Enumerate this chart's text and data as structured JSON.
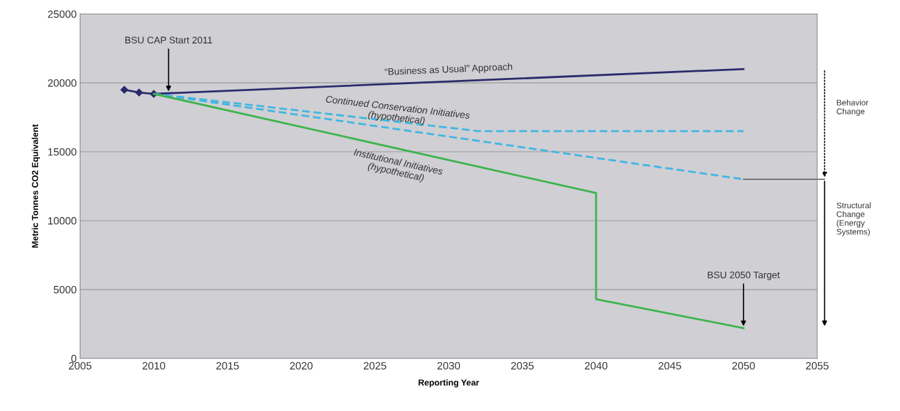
{
  "chart_data": {
    "type": "line",
    "xlabel": "Reporting Year",
    "ylabel": "Metric Tonnes CO2 Equivalent",
    "xlim": [
      2005,
      2055
    ],
    "xticks": [
      2005,
      2010,
      2015,
      2020,
      2025,
      2030,
      2035,
      2040,
      2045,
      2050,
      2055
    ],
    "ylim": [
      0,
      25000
    ],
    "yticks": [
      0,
      5000,
      10000,
      15000,
      20000,
      25000
    ],
    "grid": "y",
    "legend": false,
    "series": [
      {
        "color": "#2b2a6b",
        "x": [
          2008,
          2009,
          2010
        ],
        "values": [
          19500,
          19300,
          19200
        ],
        "marker": "diamond",
        "line_style": "solid"
      },
      {
        "name": "“Business as Usual” Approach",
        "color": "#2b2a6b",
        "x": [
          2010,
          2050
        ],
        "values": [
          19200,
          21000
        ],
        "line_style": "solid"
      },
      {
        "name": "Continued Conservation Initiatives\n(hypothetical)",
        "color": "#3fb6e2",
        "x": [
          2010,
          2032,
          2050
        ],
        "values": [
          19200,
          16500,
          16500
        ],
        "line_style": "dashed"
      },
      {
        "color": "#3fb6e2",
        "x": [
          2010,
          2050
        ],
        "values": [
          19200,
          13000
        ],
        "line_style": "dashed"
      },
      {
        "name": "Institutional Initiatives\n(hypothetical)",
        "color": "#3cb44b",
        "x": [
          2010,
          2040,
          2040,
          2050
        ],
        "values": [
          19200,
          12000,
          4300,
          2200
        ],
        "line_style": "solid"
      }
    ],
    "annotations": [
      {
        "text": "BSU CAP Start 2011",
        "x": 2011,
        "y": 19245
      },
      {
        "text": "BSU 2050 Target",
        "x": 2050,
        "y": 2200
      },
      "Behavior\nChange",
      "Structural\nChange\n(Energy\nSystems)"
    ]
  }
}
